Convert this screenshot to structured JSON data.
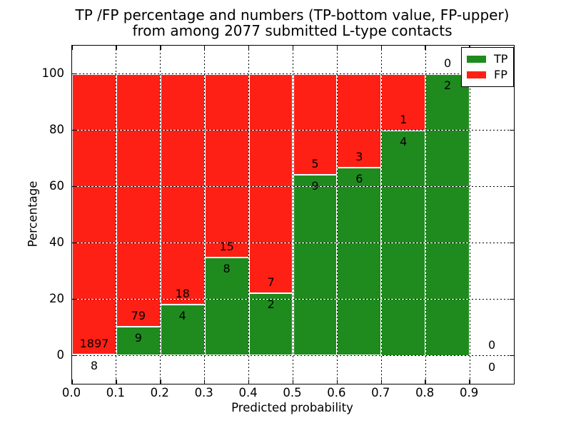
{
  "title": {
    "line1": "TP /FP percentage and numbers (TP-bottom value, FP-upper)",
    "line2": "from among 2077 submitted L-type contacts"
  },
  "chart_data": {
    "type": "bar",
    "subtype": "stacked-percentage-histogram",
    "title": "TP /FP percentage and numbers (TP-bottom value, FP-upper) from among 2077 submitted L-type contacts",
    "xlabel": "Predicted probability",
    "ylabel": "Percentage",
    "xlim": [
      0.0,
      1.0
    ],
    "ylim": [
      -10,
      110
    ],
    "x_ticks": [
      "0.0",
      "0.1",
      "0.2",
      "0.3",
      "0.4",
      "0.5",
      "0.6",
      "0.7",
      "0.8",
      "0.9"
    ],
    "y_ticks": [
      "0",
      "20",
      "40",
      "60",
      "80",
      "100"
    ],
    "grid": true,
    "grid_style": "dotted",
    "total_contacts": 2077,
    "colors": {
      "tp": "#1f8b1f",
      "fp": "#ff2015"
    },
    "legend": {
      "position": "upper-right",
      "entries": [
        {
          "label": "TP",
          "color": "#1f8b1f"
        },
        {
          "label": "FP",
          "color": "#ff2015"
        }
      ]
    },
    "bins": [
      {
        "range": [
          0.0,
          0.1
        ],
        "tp": 8,
        "fp": 1897
      },
      {
        "range": [
          0.1,
          0.2
        ],
        "tp": 9,
        "fp": 79
      },
      {
        "range": [
          0.2,
          0.3
        ],
        "tp": 4,
        "fp": 18
      },
      {
        "range": [
          0.3,
          0.4
        ],
        "tp": 8,
        "fp": 15
      },
      {
        "range": [
          0.4,
          0.5
        ],
        "tp": 2,
        "fp": 7
      },
      {
        "range": [
          0.5,
          0.6
        ],
        "tp": 9,
        "fp": 5
      },
      {
        "range": [
          0.6,
          0.7
        ],
        "tp": 6,
        "fp": 3
      },
      {
        "range": [
          0.7,
          0.8
        ],
        "tp": 4,
        "fp": 1
      },
      {
        "range": [
          0.8,
          0.9
        ],
        "tp": 2,
        "fp": 0
      },
      {
        "range": [
          0.9,
          1.0
        ],
        "tp": 0,
        "fp": 0
      }
    ]
  }
}
